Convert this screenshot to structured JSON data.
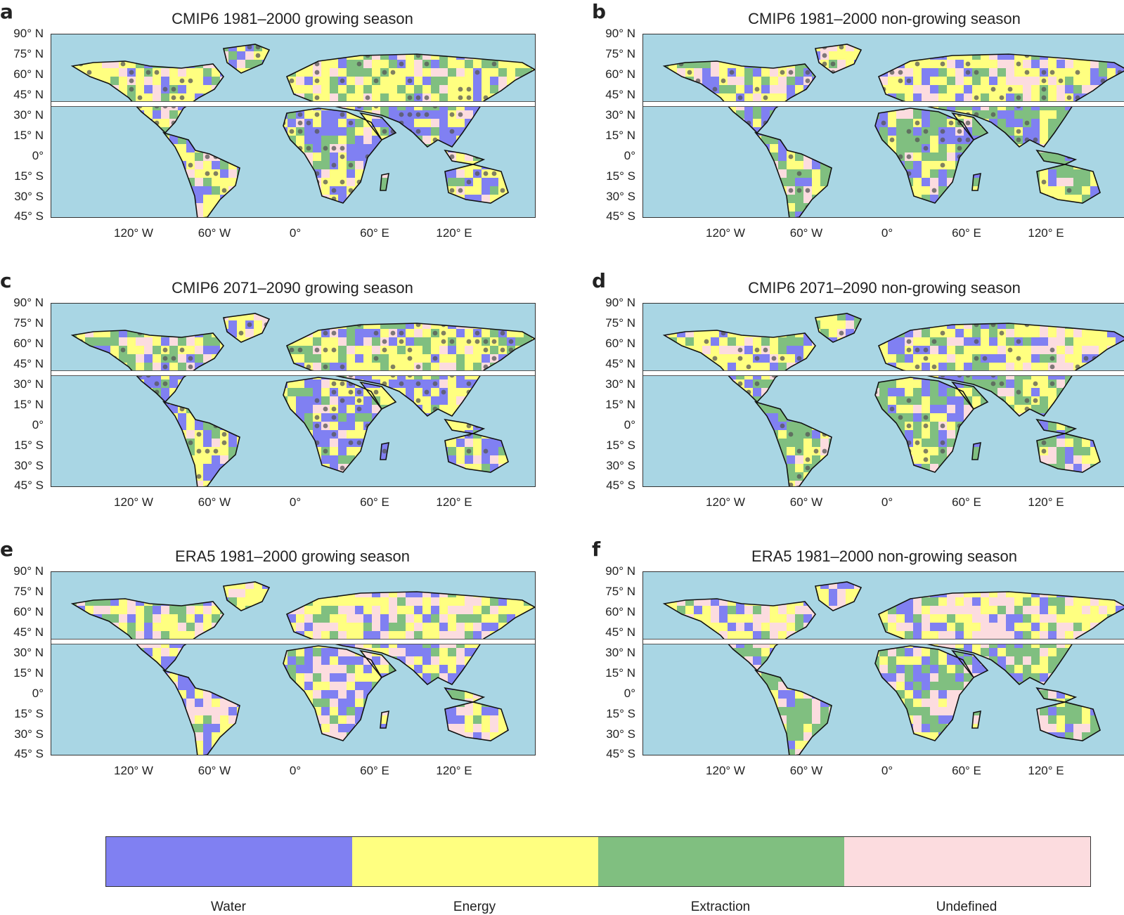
{
  "panels": [
    {
      "letter": "a",
      "title": "CMIP6 1981–2000 growing season"
    },
    {
      "letter": "b",
      "title": "CMIP6 1981–2000 non-growing season"
    },
    {
      "letter": "c",
      "title": "CMIP6 2071–2090 growing season"
    },
    {
      "letter": "d",
      "title": "CMIP6 2071–2090 non-growing season"
    },
    {
      "letter": "e",
      "title": "ERA5 1981–2000 growing season"
    },
    {
      "letter": "f",
      "title": "ERA5 1981–2000 non-growing season"
    }
  ],
  "lat_ticks": [
    "90° N",
    "75° N",
    "60° N",
    "45° N",
    "30° N",
    "15° N",
    "0°",
    "15° S",
    "30° S",
    "45° S"
  ],
  "lon_ticks": [
    "120° W",
    "60° W",
    "0°",
    "60° E",
    "120° E"
  ],
  "legend": {
    "items": [
      {
        "label": "Water",
        "color": "#8080f2"
      },
      {
        "label": "Energy",
        "color": "#ffff80"
      },
      {
        "label": "Extraction",
        "color": "#80bf80"
      },
      {
        "label": "Undefined",
        "color": "#fcdcdf"
      }
    ]
  },
  "colors": {
    "ocean": "#a9d6e4",
    "coast": "#111111",
    "stipple": "#555555"
  }
}
